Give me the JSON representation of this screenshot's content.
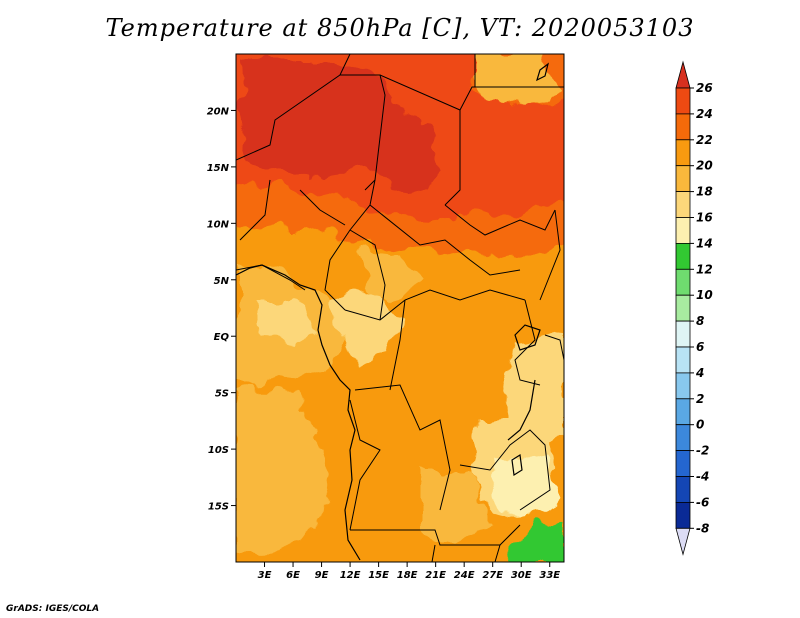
{
  "title": "Temperature at 850hPa [C], VT: 2020053103",
  "credit": "GrADS: IGES/COLA",
  "map": {
    "lon_range": [
      0,
      34.5
    ],
    "lat_range": [
      -20,
      25
    ],
    "lon_ticks": [
      "3E",
      "6E",
      "9E",
      "12E",
      "15E",
      "18E",
      "21E",
      "24E",
      "27E",
      "30E",
      "33E"
    ],
    "lat_ticks": [
      "20N",
      "15N",
      "10N",
      "5N",
      "EQ",
      "5S",
      "10S",
      "15S"
    ]
  },
  "colorbar": {
    "labels": [
      "26",
      "24",
      "22",
      "20",
      "18",
      "16",
      "14",
      "12",
      "10",
      "8",
      "6",
      "4",
      "2",
      "0",
      "-2",
      "-4",
      "-6",
      "-8"
    ],
    "colors": [
      "#d7301f",
      "#ee4a12",
      "#f56a0a",
      "#f89a10",
      "#f9b83c",
      "#fcd77a",
      "#fdf0b0",
      "#32c832",
      "#6fdc6f",
      "#a8eca0",
      "#dff5f5",
      "#b8e3f5",
      "#88c8ee",
      "#5aa8e4",
      "#3c88dc",
      "#2466d0",
      "#1446b4",
      "#0a2a96",
      "#07147a"
    ]
  }
}
